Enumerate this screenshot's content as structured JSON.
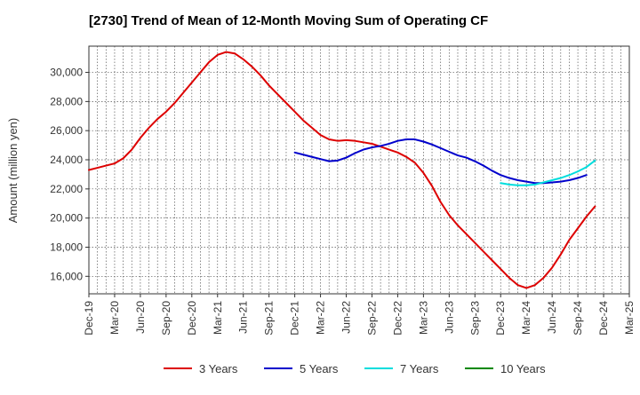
{
  "chart_data": {
    "type": "line",
    "title": "[2730]  Trend of Mean of 12-Month Moving Sum of Operating CF",
    "xlabel": "",
    "ylabel": "Amount (million yen)",
    "ylim": [
      14800,
      31800
    ],
    "yticks": [
      16000,
      18000,
      20000,
      22000,
      24000,
      26000,
      28000,
      30000
    ],
    "ytick_labels": [
      "16,000",
      "18,000",
      "20,000",
      "22,000",
      "24,000",
      "26,000",
      "28,000",
      "30,000"
    ],
    "xtick_labels": [
      "Dec-19",
      "Mar-20",
      "Jun-20",
      "Sep-20",
      "Dec-20",
      "Mar-21",
      "Jun-21",
      "Sep-21",
      "Dec-21",
      "Mar-22",
      "Jun-22",
      "Sep-22",
      "Dec-22",
      "Mar-23",
      "Jun-23",
      "Sep-23",
      "Dec-23",
      "Mar-24",
      "Jun-24",
      "Sep-24",
      "Dec-24",
      "Mar-25"
    ],
    "grid": true,
    "legend_position": "bottom",
    "series": [
      {
        "name": "3 Years",
        "color": "#dd0000",
        "start": 0,
        "values": [
          23300,
          23450,
          23600,
          23750,
          24100,
          24700,
          25500,
          26200,
          26800,
          27300,
          27900,
          28600,
          29300,
          30000,
          30700,
          31200,
          31400,
          31300,
          30900,
          30400,
          29800,
          29100,
          28500,
          27900,
          27300,
          26700,
          26200,
          25700,
          25400,
          25300,
          25350,
          25300,
          25200,
          25100,
          24900,
          24700,
          24500,
          24200,
          23800,
          23100,
          22200,
          21100,
          20200,
          19500,
          18900,
          18300,
          17700,
          17100,
          16500,
          15900,
          15400,
          15200,
          15400,
          15900,
          16600,
          17500,
          18500,
          19300,
          20100,
          20800
        ]
      },
      {
        "name": "5 Years",
        "color": "#0000cc",
        "start": 24,
        "values": [
          24500,
          24350,
          24200,
          24050,
          23900,
          23950,
          24150,
          24450,
          24700,
          24850,
          24950,
          25100,
          25300,
          25400,
          25400,
          25250,
          25050,
          24800,
          24550,
          24300,
          24150,
          23900,
          23600,
          23250,
          22950,
          22750,
          22600,
          22500,
          22400,
          22400,
          22450,
          22500,
          22600,
          22750,
          22950
        ]
      },
      {
        "name": "7 Years",
        "color": "#00dddd",
        "start": 48,
        "values": [
          22400,
          22300,
          22250,
          22250,
          22300,
          22450,
          22600,
          22750,
          22950,
          23200,
          23500,
          23950
        ]
      },
      {
        "name": "10 Years",
        "color": "#008800",
        "start": null,
        "values": []
      }
    ]
  }
}
